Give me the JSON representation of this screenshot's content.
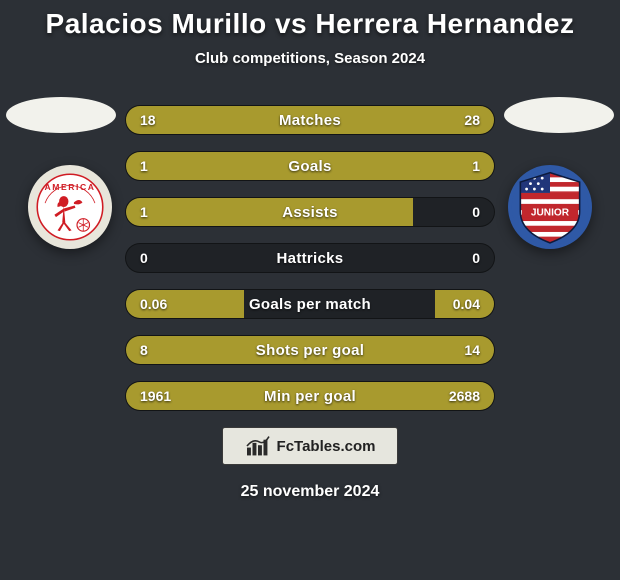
{
  "background_color": "#2c3036",
  "title": {
    "text": "Palacios Murillo vs Herrera Hernandez",
    "fontsize": 28
  },
  "subtitle": {
    "text": "Club competitions, Season 2024",
    "fontsize": 15
  },
  "clubs": {
    "ellipse_color": "#f2f2ec",
    "left": {
      "name": "America",
      "ring_color": "#e8e6db",
      "inner_color": "#ffffff",
      "accent_color": "#d01c24",
      "text_color": "#d01c24"
    },
    "right": {
      "name": "Junior",
      "bg_color": "#2f59a6",
      "stripe_colors": [
        "#c1272d",
        "#ffffff"
      ],
      "star_field": "#21367a",
      "text_color": "#ffffff",
      "text_bg": "#c1272d"
    }
  },
  "bars": {
    "track_color": "#1f2226",
    "left_color": "#a89a2e",
    "right_color": "#a89a2e",
    "label_fontsize": 15,
    "value_fontsize": 14,
    "rows": [
      {
        "label": "Matches",
        "left_val": "18",
        "right_val": "28",
        "left_pct": 39,
        "right_pct": 61
      },
      {
        "label": "Goals",
        "left_val": "1",
        "right_val": "1",
        "left_pct": 50,
        "right_pct": 50
      },
      {
        "label": "Assists",
        "left_val": "1",
        "right_val": "0",
        "left_pct": 78,
        "right_pct": 0
      },
      {
        "label": "Hattricks",
        "left_val": "0",
        "right_val": "0",
        "left_pct": 0,
        "right_pct": 0
      },
      {
        "label": "Goals per match",
        "left_val": "0.06",
        "right_val": "0.04",
        "left_pct": 32,
        "right_pct": 16
      },
      {
        "label": "Shots per goal",
        "left_val": "8",
        "right_val": "14",
        "left_pct": 36,
        "right_pct": 64
      },
      {
        "label": "Min per goal",
        "left_val": "1961",
        "right_val": "2688",
        "left_pct": 42,
        "right_pct": 58
      }
    ]
  },
  "footer": {
    "brand_text": "FcTables.com",
    "brand_bg": "#e6e6de",
    "brand_fontsize": 15,
    "date_text": "25 november 2024",
    "date_fontsize": 16
  }
}
